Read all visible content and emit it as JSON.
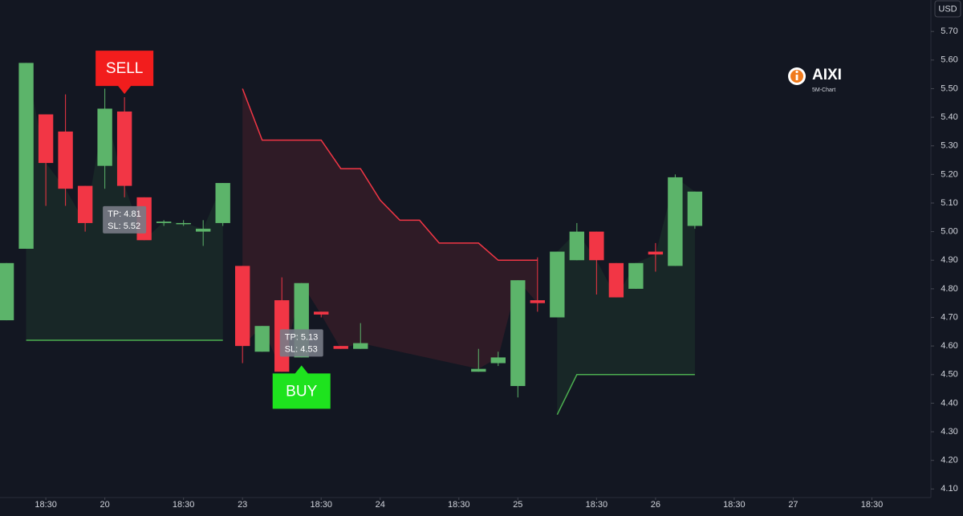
{
  "chart_data": {
    "type": "candlestick",
    "currency": "USD",
    "brand": {
      "name": "AIXI",
      "subtitle": "5M-Chart"
    },
    "up_color": "#5cb46a",
    "down_color": "#f23645",
    "x": [
      0,
      1,
      2,
      3,
      4,
      5,
      6,
      7,
      8,
      9,
      10,
      11,
      12,
      13,
      14,
      15,
      16,
      17,
      18,
      24,
      25,
      26,
      27,
      28,
      29,
      30,
      31,
      32,
      33,
      34,
      35
    ],
    "open": [
      4.69,
      4.94,
      5.41,
      5.35,
      5.16,
      5.23,
      5.42,
      5.12,
      5.03,
      5.03,
      5.0,
      5.03,
      4.88,
      4.58,
      4.76,
      4.56,
      4.72,
      4.6,
      4.59,
      4.51,
      4.54,
      4.46,
      4.76,
      4.7,
      4.9,
      5.0,
      4.89,
      4.8,
      4.93,
      4.88,
      5.02
    ],
    "high": [
      4.89,
      5.59,
      5.41,
      5.48,
      5.16,
      5.5,
      5.47,
      5.12,
      5.04,
      5.04,
      5.04,
      5.17,
      4.88,
      4.67,
      4.84,
      4.82,
      4.72,
      4.6,
      4.68,
      4.59,
      4.58,
      4.83,
      4.91,
      4.93,
      5.03,
      5.0,
      4.89,
      4.89,
      4.96,
      5.2,
      5.14
    ],
    "low": [
      4.69,
      4.94,
      5.09,
      5.09,
      5.0,
      5.15,
      5.12,
      4.97,
      5.02,
      5.02,
      4.95,
      5.02,
      4.54,
      4.58,
      4.51,
      4.56,
      4.7,
      4.59,
      4.59,
      4.51,
      4.53,
      4.42,
      4.72,
      4.7,
      4.9,
      4.78,
      4.77,
      4.8,
      4.86,
      4.88,
      5.01
    ],
    "close": [
      4.89,
      5.59,
      5.24,
      5.15,
      5.03,
      5.43,
      5.16,
      4.97,
      5.035,
      5.03,
      5.01,
      5.17,
      4.6,
      4.67,
      4.51,
      4.82,
      4.71,
      4.59,
      4.61,
      4.52,
      4.56,
      4.83,
      4.75,
      4.93,
      5.0,
      4.9,
      4.77,
      4.89,
      4.92,
      5.19,
      5.14
    ],
    "stops": [
      {
        "color": "#f23645",
        "x": [
          12,
          13,
          16,
          17,
          18,
          19,
          20,
          21,
          22,
          24,
          25,
          27
        ],
        "values": [
          5.5,
          5.32,
          5.32,
          5.22,
          5.22,
          5.11,
          5.04,
          5.04,
          4.96,
          4.96,
          4.9,
          4.9
        ]
      },
      {
        "color": "#4caf50",
        "x": [
          1,
          11
        ],
        "values": [
          4.62,
          4.62
        ]
      },
      {
        "color": "#4caf50",
        "x": [
          28,
          29,
          35
        ],
        "values": [
          4.36,
          4.5,
          4.5
        ]
      }
    ],
    "signals": [
      {
        "label": "SELL",
        "x": 6,
        "position": "above",
        "color": "#f21d1d",
        "tp": "TP: 4.81",
        "sl": "SL: 5.52"
      },
      {
        "label": "BUY",
        "x": 15,
        "position": "below",
        "color": "#1ee31e",
        "tp": "TP: 5.13",
        "sl": "SL: 4.53"
      }
    ],
    "xlim": [
      -0.33,
      47
    ],
    "xticks": [
      {
        "value": 2,
        "label": "18:30"
      },
      {
        "value": 5,
        "label": "20"
      },
      {
        "value": 9,
        "label": "18:30"
      },
      {
        "value": 12,
        "label": "23"
      },
      {
        "value": 16,
        "label": "18:30"
      },
      {
        "value": 19,
        "label": "24"
      },
      {
        "value": 23,
        "label": "18:30"
      },
      {
        "value": 26,
        "label": "25"
      },
      {
        "value": 30,
        "label": "18:30"
      },
      {
        "value": 33,
        "label": "26"
      },
      {
        "value": 37,
        "label": "18:30"
      },
      {
        "value": 40,
        "label": "27"
      },
      {
        "value": 44,
        "label": "18:30"
      }
    ],
    "ylim": [
      4.07,
      5.81
    ],
    "yticks": [
      {
        "value": 5.7,
        "label": "5.70"
      },
      {
        "value": 5.6,
        "label": "5.60"
      },
      {
        "value": 5.5,
        "label": "5.50"
      },
      {
        "value": 5.4,
        "label": "5.40"
      },
      {
        "value": 5.3,
        "label": "5.30"
      },
      {
        "value": 5.2,
        "label": "5.20"
      },
      {
        "value": 5.1,
        "label": "5.10"
      },
      {
        "value": 5.0,
        "label": "5.00"
      },
      {
        "value": 4.9,
        "label": "4.90"
      },
      {
        "value": 4.8,
        "label": "4.80"
      },
      {
        "value": 4.7,
        "label": "4.70"
      },
      {
        "value": 4.6,
        "label": "4.60"
      },
      {
        "value": 4.5,
        "label": "4.50"
      },
      {
        "value": 4.4,
        "label": "4.40"
      },
      {
        "value": 4.3,
        "label": "4.30"
      },
      {
        "value": 4.2,
        "label": "4.20"
      },
      {
        "value": 4.1,
        "label": "4.10"
      }
    ]
  }
}
